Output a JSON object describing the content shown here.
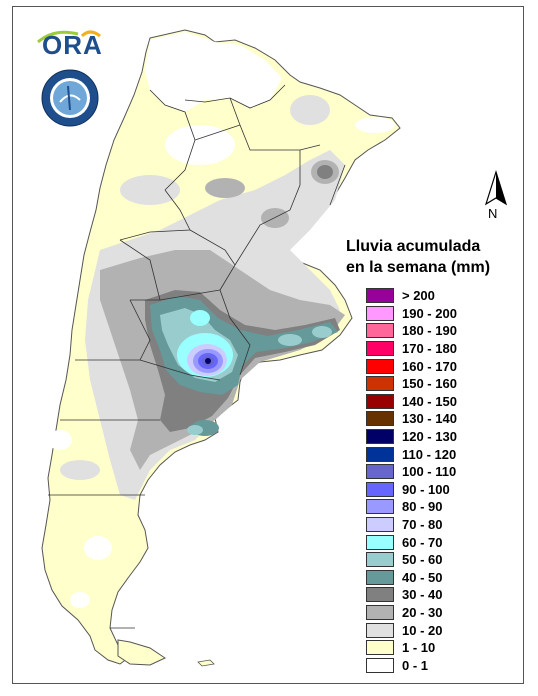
{
  "logo": {
    "text": "ORA"
  },
  "north_arrow": {
    "label": "N"
  },
  "legend": {
    "title_line1": "Lluvia acumulada",
    "title_line2": "en la semana (mm)",
    "items": [
      {
        "label": "> 200",
        "color": "#990099"
      },
      {
        "label": "190 - 200",
        "color": "#ff99ff"
      },
      {
        "label": "180 - 190",
        "color": "#ff6699"
      },
      {
        "label": "170 - 180",
        "color": "#ff0066"
      },
      {
        "label": "160 - 170",
        "color": "#ff0000"
      },
      {
        "label": "150 - 160",
        "color": "#cc3300"
      },
      {
        "label": "140 - 150",
        "color": "#990000"
      },
      {
        "label": "130 - 140",
        "color": "#663300"
      },
      {
        "label": "120 - 130",
        "color": "#000066"
      },
      {
        "label": "110 - 120",
        "color": "#003399"
      },
      {
        "label": "100 - 110",
        "color": "#6666cc"
      },
      {
        "label": "90 - 100",
        "color": "#6666ff"
      },
      {
        "label": "80 - 90",
        "color": "#9999ff"
      },
      {
        "label": "70 - 80",
        "color": "#ccccff"
      },
      {
        "label": "60 - 70",
        "color": "#99ffff"
      },
      {
        "label": "50 - 60",
        "color": "#99cccc"
      },
      {
        "label": "40 - 50",
        "color": "#669999"
      },
      {
        "label": "30 - 40",
        "color": "#808080"
      },
      {
        "label": "20 - 30",
        "color": "#b2b2b2"
      },
      {
        "label": "10 - 20",
        "color": "#e0e0e0"
      },
      {
        "label": "1 - 10",
        "color": "#ffffcc"
      },
      {
        "label": "0 - 1",
        "color": "#ffffff"
      }
    ]
  }
}
